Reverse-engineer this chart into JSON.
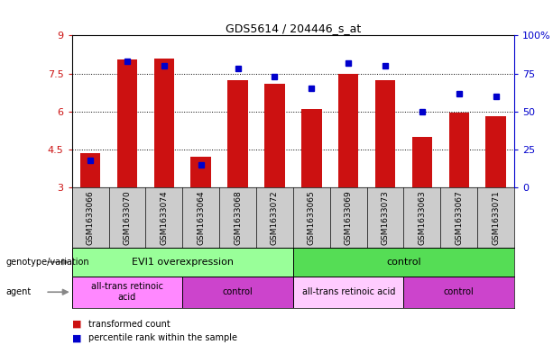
{
  "title": "GDS5614 / 204446_s_at",
  "samples": [
    "GSM1633066",
    "GSM1633070",
    "GSM1633074",
    "GSM1633064",
    "GSM1633068",
    "GSM1633072",
    "GSM1633065",
    "GSM1633069",
    "GSM1633073",
    "GSM1633063",
    "GSM1633067",
    "GSM1633071"
  ],
  "transformed_count": [
    4.35,
    8.05,
    8.1,
    4.2,
    7.25,
    7.1,
    6.1,
    7.5,
    7.25,
    5.0,
    5.95,
    5.8
  ],
  "percentile_rank": [
    18,
    83,
    80,
    15,
    78,
    73,
    65,
    82,
    80,
    50,
    62,
    60
  ],
  "ylim_left": [
    3,
    9
  ],
  "ylim_right": [
    0,
    100
  ],
  "yticks_left": [
    3,
    4.5,
    6,
    7.5,
    9
  ],
  "yticks_right": [
    0,
    25,
    50,
    75,
    100
  ],
  "bar_color": "#CC1111",
  "dot_color": "#0000CC",
  "bg_color": "#FFFFFF",
  "tick_bg_color": "#CCCCCC",
  "genotype_groups": [
    {
      "label": "EVI1 overexpression",
      "start": 0,
      "end": 6,
      "color": "#99FF99"
    },
    {
      "label": "control",
      "start": 6,
      "end": 12,
      "color": "#55DD55"
    }
  ],
  "agent_groups": [
    {
      "label": "all-trans retinoic\nacid",
      "start": 0,
      "end": 3,
      "color": "#FF88FF"
    },
    {
      "label": "control",
      "start": 3,
      "end": 6,
      "color": "#CC44CC"
    },
    {
      "label": "all-trans retinoic acid",
      "start": 6,
      "end": 9,
      "color": "#FFCCFF"
    },
    {
      "label": "control",
      "start": 9,
      "end": 12,
      "color": "#CC44CC"
    }
  ],
  "legend_bar_label": "transformed count",
  "legend_dot_label": "percentile rank within the sample",
  "left_axis_color": "#CC1111",
  "right_axis_color": "#0000CC"
}
